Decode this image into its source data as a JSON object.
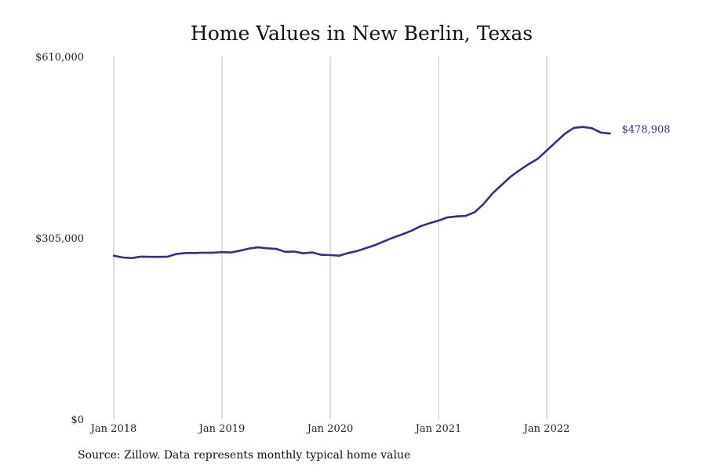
{
  "chart_data": {
    "type": "line",
    "title": "Home Values in New Berlin, Texas",
    "xlabel": "",
    "ylabel": "",
    "ylim": [
      0,
      610000
    ],
    "y_ticks": [
      {
        "value": 0,
        "label": "$0"
      },
      {
        "value": 305000,
        "label": "$305,000"
      },
      {
        "value": 610000,
        "label": "$610,000"
      }
    ],
    "x_ticks": [
      {
        "value": 0,
        "label": "Jan 2018"
      },
      {
        "value": 12,
        "label": "Jan 2019"
      },
      {
        "value": 24,
        "label": "Jan 2020"
      },
      {
        "value": 36,
        "label": "Jan 2021"
      },
      {
        "value": 48,
        "label": "Jan 2022"
      }
    ],
    "x_unit": "month index from Jan 2018",
    "vertical_gridlines": true,
    "horizontal_gridlines": false,
    "line_color": "#2e3192",
    "series": [
      {
        "x": [
          0,
          1,
          2,
          3,
          4,
          5,
          6,
          7,
          8,
          9,
          10,
          11,
          12,
          13,
          14,
          15,
          16,
          17,
          18,
          19,
          20,
          21,
          22,
          23,
          24,
          25,
          26,
          27,
          28,
          29,
          30,
          31,
          32,
          33,
          34,
          35,
          36,
          37,
          38,
          39,
          40,
          41,
          42,
          43,
          44,
          45,
          46,
          47,
          48,
          49,
          50,
          51,
          52,
          53,
          54,
          55
        ],
        "values": [
          275000,
          272000,
          271000,
          273500,
          273000,
          273000,
          273500,
          278000,
          279500,
          279500,
          280000,
          280000,
          281000,
          280500,
          283500,
          287000,
          289000,
          287500,
          286500,
          281500,
          282000,
          279000,
          280500,
          276500,
          276000,
          275000,
          279500,
          283000,
          288000,
          293000,
          299500,
          305500,
          311000,
          317000,
          324500,
          329500,
          334000,
          339500,
          341000,
          342000,
          348000,
          362000,
          380000,
          394000,
          408000,
          419000,
          429000,
          438000,
          452000,
          466000,
          480000,
          490000,
          491500,
          489500,
          482000,
          480500
        ]
      }
    ],
    "end_label": "$478,908"
  },
  "source_note": "Source: Zillow. Data represents monthly typical home value"
}
